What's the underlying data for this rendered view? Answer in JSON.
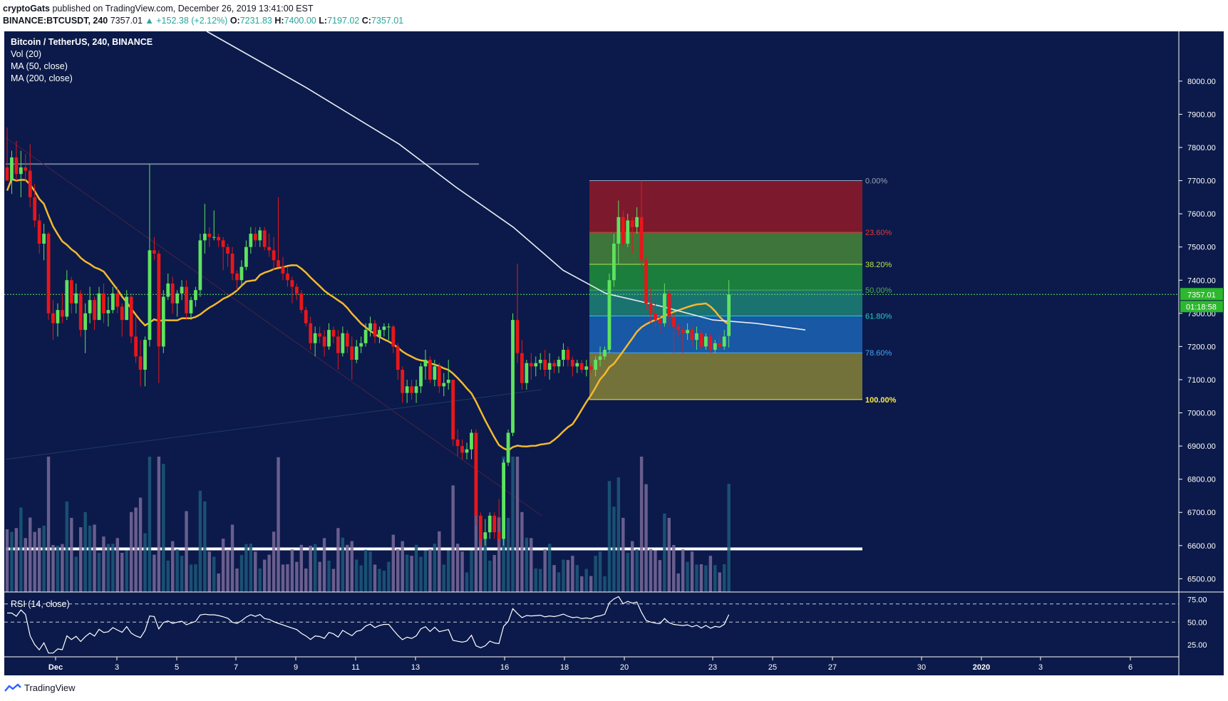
{
  "header": {
    "author": "cryptoGats",
    "published_text": "published on TradingView.com, December 26, 2019 13:41:00 EST",
    "symbol": "BINANCE:BTCUSDT, 240",
    "last": "7357.01",
    "change": "▲ +152.38 (+2.12%)",
    "o_label": "O:",
    "o_val": "7231.83",
    "h_label": "H:",
    "h_val": "7400.00",
    "l_label": "L:",
    "l_val": "7197.02",
    "c_label": "C:",
    "c_val": "7357.01"
  },
  "legend": {
    "title": "Bitcoin / TetherUS, 240, BINANCE",
    "vol": "Vol (20)",
    "ma50": "MA (50, close)",
    "ma200": "MA (200, close)",
    "rsi": "RSI (14, close)"
  },
  "price_tag": {
    "price": "7357.01",
    "countdown": "01:18:58"
  },
  "footer": {
    "brand": "TradingView"
  },
  "colors": {
    "background": "#0b1a4a",
    "up": "#5ee35e",
    "down": "#e8161a",
    "ma50": "#f5b82e",
    "ma200": "#e8eef2",
    "frame": "#ffffff"
  },
  "chart_data": {
    "type": "candlestick",
    "title": "Bitcoin / TetherUS, 240, BINANCE",
    "x_ticks": [
      "Dec",
      "3",
      "5",
      "7",
      "9",
      "11",
      "13",
      "16",
      "18",
      "20",
      "23",
      "25",
      "27",
      "30",
      "2020",
      "3",
      "6"
    ],
    "price_axis": {
      "ylim": [
        6460,
        8150
      ],
      "ticks": [
        "8000.00",
        "7900.00",
        "7800.00",
        "7700.00",
        "7600.00",
        "7500.00",
        "7400.00",
        "7300.00",
        "7200.00",
        "7100.00",
        "7000.00",
        "6900.00",
        "6800.00",
        "6700.00",
        "6600.00",
        "6500.00"
      ]
    },
    "rsi_axis": {
      "ylim": [
        15,
        80
      ],
      "ticks": [
        "75.00",
        "50.00",
        "25.00"
      ],
      "levels": [
        70,
        50
      ]
    },
    "fibonacci": {
      "high": 7700,
      "low": 7040,
      "levels": [
        {
          "label": "0.00%",
          "ratio": 0.0,
          "color": "#9aa4b8"
        },
        {
          "label": "23.60%",
          "ratio": 0.236,
          "color": "#e53935"
        },
        {
          "label": "38.20%",
          "ratio": 0.382,
          "color": "#b5e64a"
        },
        {
          "label": "50.00%",
          "ratio": 0.5,
          "color": "#4caf50"
        },
        {
          "label": "61.80%",
          "ratio": 0.618,
          "color": "#26d0c8"
        },
        {
          "label": "78.60%",
          "ratio": 0.786,
          "color": "#42a5f5"
        },
        {
          "label": "100.00%",
          "ratio": 1.0,
          "color": "#ffeb3b"
        }
      ],
      "zone_colors": [
        "#8a1a2a",
        "#43803a",
        "#1e8a3c",
        "#1d7d74",
        "#1a5fae",
        "#7e7c3a"
      ]
    },
    "horizontal_lines": [
      {
        "price": 7750,
        "color": "#6f7b98"
      },
      {
        "price": 6590,
        "color": "#ffffff"
      }
    ],
    "candles": [
      {
        "o": 7740,
        "h": 7860,
        "l": 7700,
        "c": 7700
      },
      {
        "o": 7700,
        "h": 7790,
        "l": 7660,
        "c": 7770
      },
      {
        "o": 7770,
        "h": 7820,
        "l": 7700,
        "c": 7720
      },
      {
        "o": 7720,
        "h": 7790,
        "l": 7650,
        "c": 7740
      },
      {
        "o": 7740,
        "h": 7780,
        "l": 7700,
        "c": 7730
      },
      {
        "o": 7730,
        "h": 7810,
        "l": 7620,
        "c": 7650
      },
      {
        "o": 7650,
        "h": 7690,
        "l": 7560,
        "c": 7580
      },
      {
        "o": 7580,
        "h": 7600,
        "l": 7480,
        "c": 7510
      },
      {
        "o": 7510,
        "h": 7570,
        "l": 7460,
        "c": 7540
      },
      {
        "o": 7540,
        "h": 7545,
        "l": 7280,
        "c": 7300
      },
      {
        "o": 7300,
        "h": 7340,
        "l": 7220,
        "c": 7270
      },
      {
        "o": 7270,
        "h": 7330,
        "l": 7230,
        "c": 7310
      },
      {
        "o": 7310,
        "h": 7360,
        "l": 7270,
        "c": 7290
      },
      {
        "o": 7290,
        "h": 7430,
        "l": 7280,
        "c": 7400
      },
      {
        "o": 7400,
        "h": 7410,
        "l": 7300,
        "c": 7330
      },
      {
        "o": 7330,
        "h": 7390,
        "l": 7300,
        "c": 7360
      },
      {
        "o": 7360,
        "h": 7370,
        "l": 7230,
        "c": 7250
      },
      {
        "o": 7250,
        "h": 7330,
        "l": 7180,
        "c": 7300
      },
      {
        "o": 7300,
        "h": 7380,
        "l": 7270,
        "c": 7340
      },
      {
        "o": 7340,
        "h": 7350,
        "l": 7250,
        "c": 7280
      },
      {
        "o": 7280,
        "h": 7380,
        "l": 7280,
        "c": 7360
      },
      {
        "o": 7360,
        "h": 7390,
        "l": 7270,
        "c": 7300
      },
      {
        "o": 7300,
        "h": 7350,
        "l": 7260,
        "c": 7310
      },
      {
        "o": 7310,
        "h": 7380,
        "l": 7300,
        "c": 7360
      },
      {
        "o": 7360,
        "h": 7380,
        "l": 7300,
        "c": 7320
      },
      {
        "o": 7320,
        "h": 7330,
        "l": 7230,
        "c": 7280
      },
      {
        "o": 7280,
        "h": 7370,
        "l": 7280,
        "c": 7350
      },
      {
        "o": 7350,
        "h": 7360,
        "l": 7210,
        "c": 7230
      },
      {
        "o": 7230,
        "h": 7290,
        "l": 7150,
        "c": 7170
      },
      {
        "o": 7170,
        "h": 7220,
        "l": 7080,
        "c": 7130
      },
      {
        "o": 7130,
        "h": 7230,
        "l": 7080,
        "c": 7220
      },
      {
        "o": 7220,
        "h": 7750,
        "l": 7200,
        "c": 7490
      },
      {
        "o": 7490,
        "h": 7530,
        "l": 7460,
        "c": 7480
      },
      {
        "o": 7480,
        "h": 7490,
        "l": 7090,
        "c": 7200
      },
      {
        "o": 7200,
        "h": 7370,
        "l": 7180,
        "c": 7350
      },
      {
        "o": 7350,
        "h": 7420,
        "l": 7340,
        "c": 7390
      },
      {
        "o": 7390,
        "h": 7410,
        "l": 7300,
        "c": 7330
      },
      {
        "o": 7330,
        "h": 7370,
        "l": 7290,
        "c": 7360
      },
      {
        "o": 7360,
        "h": 7400,
        "l": 7340,
        "c": 7380
      },
      {
        "o": 7380,
        "h": 7400,
        "l": 7280,
        "c": 7300
      },
      {
        "o": 7300,
        "h": 7350,
        "l": 7280,
        "c": 7340
      },
      {
        "o": 7340,
        "h": 7380,
        "l": 7320,
        "c": 7370
      },
      {
        "o": 7370,
        "h": 7540,
        "l": 7350,
        "c": 7520
      },
      {
        "o": 7520,
        "h": 7630,
        "l": 7480,
        "c": 7540
      },
      {
        "o": 7540,
        "h": 7560,
        "l": 7500,
        "c": 7530
      },
      {
        "o": 7530,
        "h": 7610,
        "l": 7520,
        "c": 7530
      },
      {
        "o": 7530,
        "h": 7540,
        "l": 7500,
        "c": 7520
      },
      {
        "o": 7520,
        "h": 7530,
        "l": 7430,
        "c": 7500
      },
      {
        "o": 7500,
        "h": 7510,
        "l": 7440,
        "c": 7480
      },
      {
        "o": 7480,
        "h": 7500,
        "l": 7400,
        "c": 7420
      },
      {
        "o": 7420,
        "h": 7430,
        "l": 7370,
        "c": 7400
      },
      {
        "o": 7400,
        "h": 7460,
        "l": 7380,
        "c": 7440
      },
      {
        "o": 7440,
        "h": 7520,
        "l": 7430,
        "c": 7500
      },
      {
        "o": 7500,
        "h": 7560,
        "l": 7480,
        "c": 7540
      },
      {
        "o": 7540,
        "h": 7560,
        "l": 7500,
        "c": 7520
      },
      {
        "o": 7520,
        "h": 7560,
        "l": 7500,
        "c": 7550
      },
      {
        "o": 7550,
        "h": 7560,
        "l": 7490,
        "c": 7500
      },
      {
        "o": 7500,
        "h": 7540,
        "l": 7470,
        "c": 7490
      },
      {
        "o": 7490,
        "h": 7530,
        "l": 7430,
        "c": 7460
      },
      {
        "o": 7460,
        "h": 7650,
        "l": 7450,
        "c": 7440
      },
      {
        "o": 7440,
        "h": 7470,
        "l": 7400,
        "c": 7420
      },
      {
        "o": 7420,
        "h": 7440,
        "l": 7380,
        "c": 7400
      },
      {
        "o": 7400,
        "h": 7410,
        "l": 7330,
        "c": 7380
      },
      {
        "o": 7380,
        "h": 7390,
        "l": 7340,
        "c": 7360
      },
      {
        "o": 7360,
        "h": 7370,
        "l": 7300,
        "c": 7310
      },
      {
        "o": 7310,
        "h": 7320,
        "l": 7260,
        "c": 7270
      },
      {
        "o": 7270,
        "h": 7290,
        "l": 7190,
        "c": 7210
      },
      {
        "o": 7210,
        "h": 7260,
        "l": 7170,
        "c": 7240
      },
      {
        "o": 7240,
        "h": 7260,
        "l": 7210,
        "c": 7230
      },
      {
        "o": 7230,
        "h": 7250,
        "l": 7170,
        "c": 7200
      },
      {
        "o": 7200,
        "h": 7270,
        "l": 7190,
        "c": 7250
      },
      {
        "o": 7250,
        "h": 7260,
        "l": 7210,
        "c": 7230
      },
      {
        "o": 7230,
        "h": 7250,
        "l": 7130,
        "c": 7180
      },
      {
        "o": 7180,
        "h": 7260,
        "l": 7170,
        "c": 7240
      },
      {
        "o": 7240,
        "h": 7250,
        "l": 7180,
        "c": 7200
      },
      {
        "o": 7200,
        "h": 7230,
        "l": 7100,
        "c": 7160
      },
      {
        "o": 7160,
        "h": 7220,
        "l": 7150,
        "c": 7200
      },
      {
        "o": 7200,
        "h": 7230,
        "l": 7180,
        "c": 7210
      },
      {
        "o": 7210,
        "h": 7270,
        "l": 7200,
        "c": 7250
      },
      {
        "o": 7250,
        "h": 7290,
        "l": 7230,
        "c": 7270
      },
      {
        "o": 7270,
        "h": 7280,
        "l": 7210,
        "c": 7230
      },
      {
        "o": 7230,
        "h": 7260,
        "l": 7210,
        "c": 7250
      },
      {
        "o": 7250,
        "h": 7270,
        "l": 7230,
        "c": 7260
      },
      {
        "o": 7260,
        "h": 7270,
        "l": 7220,
        "c": 7260
      },
      {
        "o": 7260,
        "h": 7265,
        "l": 7180,
        "c": 7200
      },
      {
        "o": 7200,
        "h": 7210,
        "l": 7100,
        "c": 7130
      },
      {
        "o": 7130,
        "h": 7140,
        "l": 7030,
        "c": 7060
      },
      {
        "o": 7060,
        "h": 7100,
        "l": 7030,
        "c": 7080
      },
      {
        "o": 7080,
        "h": 7100,
        "l": 7040,
        "c": 7060
      },
      {
        "o": 7060,
        "h": 7100,
        "l": 7030,
        "c": 7080
      },
      {
        "o": 7080,
        "h": 7150,
        "l": 7060,
        "c": 7140
      },
      {
        "o": 7140,
        "h": 7190,
        "l": 7100,
        "c": 7160
      },
      {
        "o": 7160,
        "h": 7170,
        "l": 7090,
        "c": 7100
      },
      {
        "o": 7100,
        "h": 7160,
        "l": 7080,
        "c": 7140
      },
      {
        "o": 7140,
        "h": 7150,
        "l": 7060,
        "c": 7080
      },
      {
        "o": 7080,
        "h": 7120,
        "l": 7050,
        "c": 7090
      },
      {
        "o": 7090,
        "h": 7160,
        "l": 7070,
        "c": 7100
      },
      {
        "o": 7100,
        "h": 7100,
        "l": 6900,
        "c": 6920
      },
      {
        "o": 6920,
        "h": 6950,
        "l": 6870,
        "c": 6900
      },
      {
        "o": 6900,
        "h": 6920,
        "l": 6860,
        "c": 6880
      },
      {
        "o": 6880,
        "h": 6910,
        "l": 6860,
        "c": 6890
      },
      {
        "o": 6890,
        "h": 6950,
        "l": 6860,
        "c": 6940
      },
      {
        "o": 6940,
        "h": 6950,
        "l": 6660,
        "c": 6690
      },
      {
        "o": 6690,
        "h": 6700,
        "l": 6600,
        "c": 6620
      },
      {
        "o": 6620,
        "h": 6680,
        "l": 6600,
        "c": 6640
      },
      {
        "o": 6640,
        "h": 6700,
        "l": 6620,
        "c": 6690
      },
      {
        "o": 6690,
        "h": 6700,
        "l": 6620,
        "c": 6640
      },
      {
        "o": 6640,
        "h": 6740,
        "l": 6600,
        "c": 6620
      },
      {
        "o": 6620,
        "h": 6860,
        "l": 6600,
        "c": 6850
      },
      {
        "o": 6850,
        "h": 6950,
        "l": 6840,
        "c": 6940
      },
      {
        "o": 6940,
        "h": 7300,
        "l": 6930,
        "c": 7280
      },
      {
        "o": 7280,
        "h": 7450,
        "l": 7150,
        "c": 7180
      },
      {
        "o": 7180,
        "h": 7220,
        "l": 7070,
        "c": 7090
      },
      {
        "o": 7090,
        "h": 7160,
        "l": 7070,
        "c": 7150
      },
      {
        "o": 7150,
        "h": 7180,
        "l": 7100,
        "c": 7140
      },
      {
        "o": 7140,
        "h": 7170,
        "l": 7110,
        "c": 7150
      },
      {
        "o": 7150,
        "h": 7180,
        "l": 7130,
        "c": 7160
      },
      {
        "o": 7160,
        "h": 7190,
        "l": 7110,
        "c": 7130
      },
      {
        "o": 7130,
        "h": 7180,
        "l": 7100,
        "c": 7150
      },
      {
        "o": 7150,
        "h": 7160,
        "l": 7120,
        "c": 7140
      },
      {
        "o": 7140,
        "h": 7170,
        "l": 7120,
        "c": 7160
      },
      {
        "o": 7160,
        "h": 7210,
        "l": 7140,
        "c": 7190
      },
      {
        "o": 7190,
        "h": 7200,
        "l": 7140,
        "c": 7160
      },
      {
        "o": 7160,
        "h": 7170,
        "l": 7110,
        "c": 7140
      },
      {
        "o": 7140,
        "h": 7160,
        "l": 7120,
        "c": 7150
      },
      {
        "o": 7150,
        "h": 7160,
        "l": 7120,
        "c": 7130
      },
      {
        "o": 7130,
        "h": 7160,
        "l": 7110,
        "c": 7140
      },
      {
        "o": 7140,
        "h": 7150,
        "l": 7120,
        "c": 7130
      },
      {
        "o": 7130,
        "h": 7170,
        "l": 7110,
        "c": 7160
      },
      {
        "o": 7160,
        "h": 7200,
        "l": 7140,
        "c": 7170
      },
      {
        "o": 7170,
        "h": 7200,
        "l": 7160,
        "c": 7190
      },
      {
        "o": 7190,
        "h": 7420,
        "l": 7180,
        "c": 7400
      },
      {
        "o": 7400,
        "h": 7540,
        "l": 7380,
        "c": 7510
      },
      {
        "o": 7510,
        "h": 7640,
        "l": 7450,
        "c": 7590
      },
      {
        "o": 7590,
        "h": 7610,
        "l": 7500,
        "c": 7510
      },
      {
        "o": 7510,
        "h": 7600,
        "l": 7500,
        "c": 7580
      },
      {
        "o": 7580,
        "h": 7590,
        "l": 7480,
        "c": 7560
      },
      {
        "o": 7560,
        "h": 7620,
        "l": 7540,
        "c": 7590
      },
      {
        "o": 7590,
        "h": 7700,
        "l": 7440,
        "c": 7460
      },
      {
        "o": 7460,
        "h": 7470,
        "l": 7310,
        "c": 7330
      },
      {
        "o": 7330,
        "h": 7380,
        "l": 7270,
        "c": 7300
      },
      {
        "o": 7300,
        "h": 7340,
        "l": 7250,
        "c": 7280
      },
      {
        "o": 7280,
        "h": 7300,
        "l": 7240,
        "c": 7270
      },
      {
        "o": 7270,
        "h": 7390,
        "l": 7260,
        "c": 7360
      },
      {
        "o": 7360,
        "h": 7370,
        "l": 7260,
        "c": 7290
      },
      {
        "o": 7290,
        "h": 7300,
        "l": 7180,
        "c": 7260
      },
      {
        "o": 7260,
        "h": 7270,
        "l": 7230,
        "c": 7250
      },
      {
        "o": 7250,
        "h": 7260,
        "l": 7180,
        "c": 7240
      },
      {
        "o": 7240,
        "h": 7270,
        "l": 7220,
        "c": 7250
      },
      {
        "o": 7250,
        "h": 7260,
        "l": 7200,
        "c": 7220
      },
      {
        "o": 7220,
        "h": 7260,
        "l": 7190,
        "c": 7240
      },
      {
        "o": 7240,
        "h": 7250,
        "l": 7190,
        "c": 7200
      },
      {
        "o": 7200,
        "h": 7240,
        "l": 7190,
        "c": 7230
      },
      {
        "o": 7230,
        "h": 7240,
        "l": 7180,
        "c": 7190
      },
      {
        "o": 7190,
        "h": 7220,
        "l": 7180,
        "c": 7210
      },
      {
        "o": 7210,
        "h": 7240,
        "l": 7190,
        "c": 7200
      },
      {
        "o": 7200,
        "h": 7250,
        "l": 7190,
        "c": 7230
      },
      {
        "o": 7231.83,
        "h": 7400,
        "l": 7197.02,
        "c": 7357.01
      }
    ]
  }
}
